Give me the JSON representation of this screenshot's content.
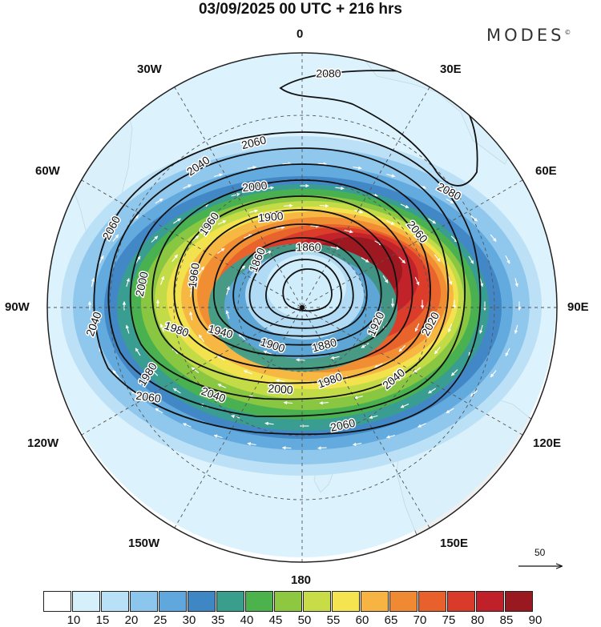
{
  "title": "03/09/2025  00 UTC  + 216 hrs",
  "logo": {
    "text": "MODES",
    "mark": "©"
  },
  "longitude_labels": {
    "lon_0": "0",
    "lon_30e": "30E",
    "lon_60e": "60E",
    "lon_90e": "90E",
    "lon_120e": "120E",
    "lon_150e": "150E",
    "lon_180": "180",
    "lon_150w": "150W",
    "lon_120w": "120W",
    "lon_90w": "90W",
    "lon_60w": "60W",
    "lon_30w": "30W"
  },
  "projection": "south-polar-stereographic",
  "contours": {
    "levels": [
      "2080",
      "2060",
      "2040",
      "2020",
      "2000",
      "1980",
      "1960",
      "1940",
      "1920",
      "1900",
      "1880",
      "1860"
    ],
    "labels": [
      "2080",
      "2080",
      "2060",
      "2060",
      "2060",
      "2060",
      "2060",
      "2040",
      "2040",
      "2040",
      "2040",
      "2000",
      "2000",
      "2000",
      "1980",
      "1980",
      "1980",
      "1960",
      "1960",
      "1940",
      "1920",
      "2020",
      "1900",
      "1900",
      "1880",
      "1860",
      "1860"
    ]
  },
  "wind_speed_fill": {
    "levels": [
      10,
      15,
      20,
      25,
      30,
      35,
      40,
      45,
      50,
      55,
      60,
      65,
      70,
      75,
      80,
      85,
      90
    ],
    "colors": [
      "#ffffff",
      "#d6f0fb",
      "#b8e0f6",
      "#8cc6ec",
      "#5fa7dc",
      "#3f86c4",
      "#3a9e8c",
      "#4cb34c",
      "#8ec840",
      "#c8dc48",
      "#f5e34f",
      "#f7b442",
      "#f08a32",
      "#e8602c",
      "#d93a2a",
      "#c0202a",
      "#9a1820"
    ]
  },
  "colorbar_labels": [
    "10",
    "15",
    "20",
    "25",
    "30",
    "35",
    "40",
    "45",
    "50",
    "55",
    "60",
    "65",
    "70",
    "75",
    "80",
    "85",
    "90"
  ],
  "reference_vector": {
    "label": "50"
  },
  "colors": {
    "land": "#efefef",
    "coast": "#555555",
    "contour": "#111111",
    "vector": "#ffffff"
  }
}
